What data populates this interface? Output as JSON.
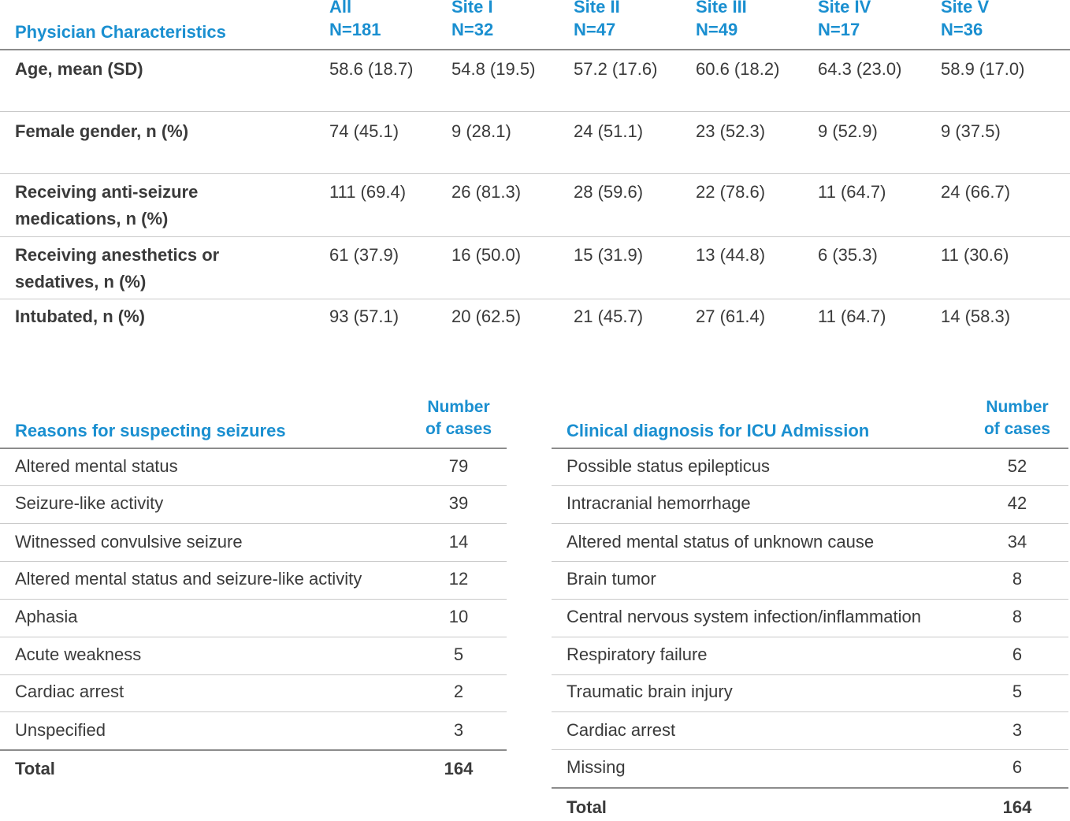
{
  "physician_table": {
    "header": "Physician Characteristics",
    "columns": [
      {
        "name": "All",
        "n": "N=181"
      },
      {
        "name": "Site I",
        "n": "N=32"
      },
      {
        "name": "Site II",
        "n": "N=47"
      },
      {
        "name": "Site III",
        "n": "N=49"
      },
      {
        "name": "Site IV",
        "n": "N=17"
      },
      {
        "name": "Site V",
        "n": "N=36"
      }
    ],
    "rows": [
      {
        "label": "Age, mean (SD)",
        "values": [
          "58.6 (18.7)",
          "54.8 (19.5)",
          "57.2 (17.6)",
          "60.6 (18.2)",
          "64.3 (23.0)",
          "58.9 (17.0)"
        ]
      },
      {
        "label": "Female gender, n (%)",
        "values": [
          "74 (45.1)",
          "9 (28.1)",
          "24 (51.1)",
          "23 (52.3)",
          "9 (52.9)",
          "9 (37.5)"
        ]
      },
      {
        "label": "Receiving anti-seizure medications, n (%)",
        "values": [
          "111 (69.4)",
          "26 (81.3)",
          "28 (59.6)",
          "22 (78.6)",
          "11 (64.7)",
          "24 (66.7)"
        ]
      },
      {
        "label": "Receiving anesthetics or sedatives, n (%)",
        "values": [
          "61 (37.9)",
          "16 (50.0)",
          "15 (31.9)",
          "13 (44.8)",
          "6 (35.3)",
          "11 (30.6)"
        ]
      },
      {
        "label": "Intubated, n (%)",
        "values": [
          "93 (57.1)",
          "20 (62.5)",
          "21 (45.7)",
          "27 (61.4)",
          "11 (64.7)",
          "14 (58.3)"
        ]
      }
    ]
  },
  "reasons_table": {
    "title": "Reasons for suspecting seizures",
    "count_header_1": "Number",
    "count_header_2": "of cases",
    "items": [
      {
        "label": "Altered mental status",
        "count": "79"
      },
      {
        "label": "Seizure-like activity",
        "count": "39"
      },
      {
        "label": "Witnessed convulsive seizure",
        "count": "14"
      },
      {
        "label": "Altered mental status and seizure-like activity",
        "count": "12"
      },
      {
        "label": "Aphasia",
        "count": "10"
      },
      {
        "label": "Acute weakness",
        "count": "5"
      },
      {
        "label": "Cardiac arrest",
        "count": "2"
      },
      {
        "label": "Unspecified",
        "count": "3"
      }
    ],
    "total_label": "Total",
    "total_value": "164"
  },
  "diagnosis_table": {
    "title": "Clinical diagnosis for ICU Admission",
    "count_header_1": "Number",
    "count_header_2": "of cases",
    "items": [
      {
        "label": "Possible status epilepticus",
        "count": "52"
      },
      {
        "label": "Intracranial hemorrhage",
        "count": "42"
      },
      {
        "label": "Altered mental status of unknown cause",
        "count": "34"
      },
      {
        "label": "Brain tumor",
        "count": "8"
      },
      {
        "label": "Central nervous system infection/inflammation",
        "count": "8"
      },
      {
        "label": "Respiratory failure",
        "count": "6"
      },
      {
        "label": "Traumatic brain injury",
        "count": "5"
      },
      {
        "label": "Cardiac arrest",
        "count": "3"
      },
      {
        "label": "Missing",
        "count": "6"
      }
    ],
    "total_label": "Total",
    "total_value": "164"
  },
  "colors": {
    "accent": "#1a8fd0",
    "text": "#3a3a3a",
    "rule": "#c9c9c9"
  }
}
